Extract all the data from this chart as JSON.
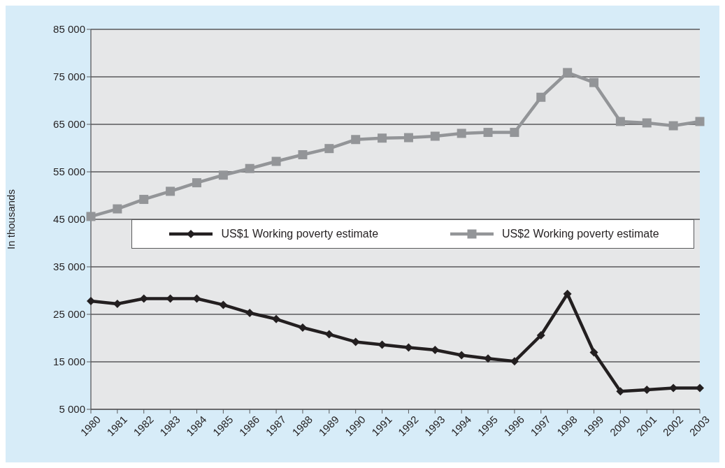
{
  "chart_data": {
    "type": "line",
    "ylabel": "In thousands",
    "categories": [
      "1980",
      "1981",
      "1982",
      "1983",
      "1984",
      "1985",
      "1986",
      "1987",
      "1988",
      "1989",
      "1990",
      "1991",
      "1992",
      "1993",
      "1994",
      "1995",
      "1996",
      "1997",
      "1998",
      "1999",
      "2000",
      "2001",
      "2002",
      "2003"
    ],
    "series": [
      {
        "name": "US$1 Working poverty estimate",
        "color": "#231f20",
        "marker": "diamond",
        "values": [
          27800,
          27200,
          28300,
          28300,
          28300,
          27000,
          25300,
          24000,
          22200,
          20800,
          19200,
          18600,
          18000,
          17500,
          16400,
          15700,
          15100,
          20600,
          29300,
          17000,
          8800,
          9100,
          9500,
          9500
        ]
      },
      {
        "name": "US$2 Working poverty estimate",
        "color": "#939598",
        "marker": "square",
        "values": [
          45600,
          47200,
          49200,
          50900,
          52700,
          54300,
          55700,
          57200,
          58600,
          59900,
          61800,
          62100,
          62200,
          62500,
          63100,
          63300,
          63300,
          70700,
          75900,
          73800,
          65600,
          65300,
          64700,
          65600
        ]
      }
    ],
    "ylim": [
      5000,
      85000
    ],
    "yticks": [
      {
        "value": 5000,
        "label": "5 000"
      },
      {
        "value": 15000,
        "label": "15 000"
      },
      {
        "value": 25000,
        "label": "25 000"
      },
      {
        "value": 35000,
        "label": "35 000"
      },
      {
        "value": 45000,
        "label": "45 000"
      },
      {
        "value": 55000,
        "label": "55 000"
      },
      {
        "value": 65000,
        "label": "65 000"
      },
      {
        "value": 75000,
        "label": "75 000"
      },
      {
        "value": 85000,
        "label": "85 000"
      }
    ],
    "grid": "y",
    "legend": "center",
    "line_style": "solid"
  }
}
